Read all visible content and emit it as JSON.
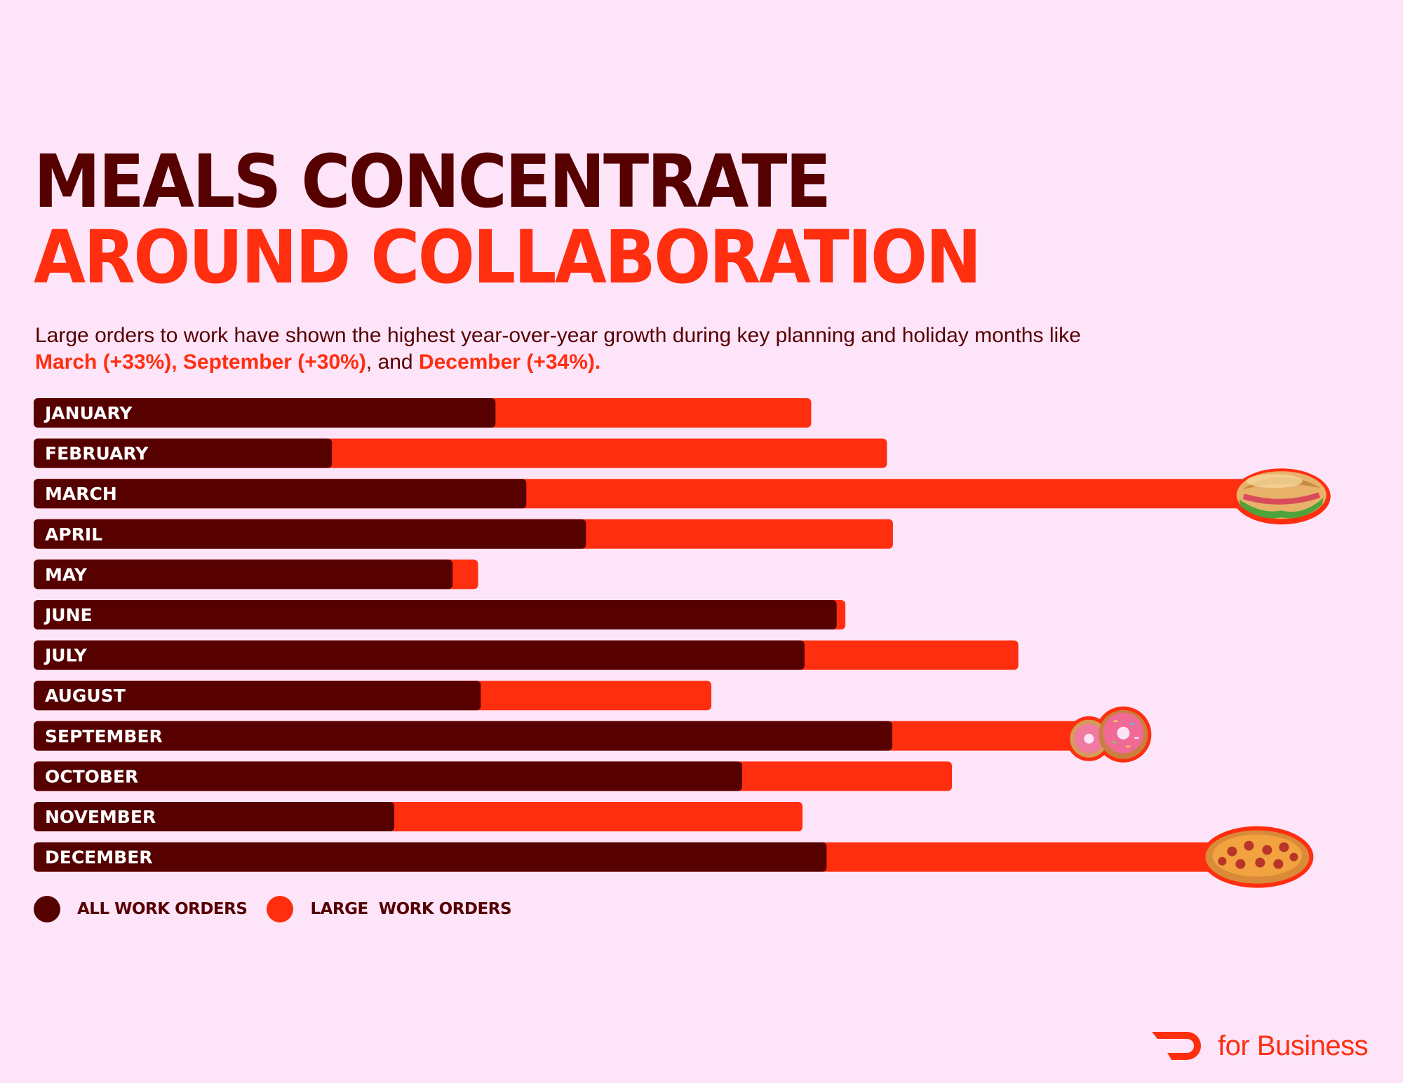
{
  "title_line1": "MEALS CONCENTRATE",
  "title_line2": "AROUND COLLABORATION",
  "subtitle": {
    "line1": "Large orders to work have shown the highest year-over-year growth during key planning and holiday months like",
    "h1": "March (+33%), September (+30%)",
    "sep": ", and ",
    "h2": "December (+34%)",
    "end": "."
  },
  "colors": {
    "all": "#560000",
    "large": "#ff2e0f",
    "background": "#fde4f8"
  },
  "chart_data": {
    "type": "bar",
    "orientation": "horizontal",
    "stacked": true,
    "categories": [
      "JANUARY",
      "FEBRUARY",
      "MARCH",
      "APRIL",
      "MAY",
      "JUNE",
      "JULY",
      "AUGUST",
      "SEPTEMBER",
      "OCTOBER",
      "NOVEMBER",
      "DECEMBER"
    ],
    "series": [
      {
        "name": "ALL WORK ORDERS",
        "color": "#560000",
        "values": [
          68.9,
          44.5,
          73.5,
          82.4,
          62.5,
          119.8,
          115.0,
          66.7,
          128.1,
          105.7,
          53.8,
          118.3
        ]
      },
      {
        "name": "LARGE  WORK ORDERS",
        "color": "#ff2e0f",
        "values": [
          47.1,
          82.8,
          113.7,
          45.8,
          3.8,
          1.3,
          31.9,
          34.4,
          33.0,
          31.3,
          60.9,
          65.3
        ]
      }
    ],
    "icons": [
      {
        "category": "MARCH",
        "name": "sandwich-icon"
      },
      {
        "category": "SEPTEMBER",
        "name": "donuts-icon"
      },
      {
        "category": "DECEMBER",
        "name": "pizza-icon"
      }
    ],
    "xlim": [
      0,
      200
    ],
    "grid": false,
    "legend": "bottom-left"
  },
  "logo": {
    "icon": "doordash-dash-icon",
    "text": "for Business"
  }
}
